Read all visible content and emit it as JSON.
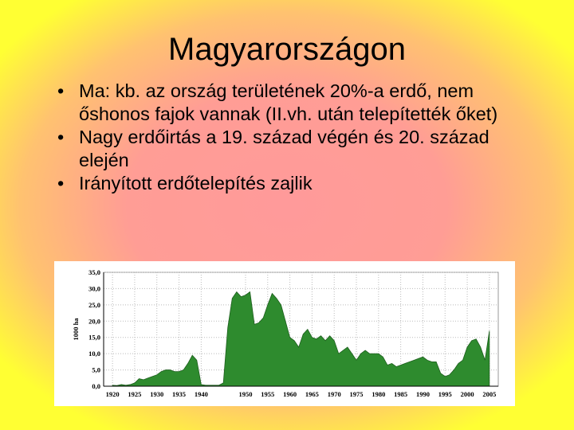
{
  "title": "Magyarországon",
  "bullets": [
    "Ma: kb. az ország területének 20%-a erdő, nem őshonos fajok vannak (II.vh. után telepítették őket)",
    "Nagy erdőirtás a 19. század végén és 20. század elején",
    "Irányított erdőtelepítés zajlik"
  ],
  "chart_data": {
    "type": "area",
    "ylabel": "1000 ha",
    "color": "#2e8b2e",
    "grid": true,
    "x": [
      1920,
      1921,
      1922,
      1923,
      1924,
      1925,
      1926,
      1927,
      1928,
      1929,
      1930,
      1931,
      1932,
      1933,
      1934,
      1935,
      1936,
      1937,
      1938,
      1939,
      1940,
      1941,
      1942,
      1943,
      1944,
      1945,
      1946,
      1947,
      1948,
      1949,
      1950,
      1951,
      1952,
      1953,
      1954,
      1955,
      1956,
      1957,
      1958,
      1959,
      1960,
      1961,
      1962,
      1963,
      1964,
      1965,
      1966,
      1967,
      1968,
      1969,
      1970,
      1971,
      1972,
      1973,
      1974,
      1975,
      1976,
      1977,
      1978,
      1979,
      1980,
      1981,
      1982,
      1983,
      1984,
      1985,
      1986,
      1987,
      1988,
      1989,
      1990,
      1991,
      1992,
      1993,
      1994,
      1995,
      1996,
      1997,
      1998,
      1999,
      2000,
      2001,
      2002,
      2003,
      2004,
      2005
    ],
    "values": [
      0.3,
      0.2,
      0.5,
      0.3,
      0.5,
      1,
      2.3,
      2,
      2.5,
      3,
      3.5,
      4.5,
      5,
      5,
      4.5,
      4.5,
      5,
      7,
      9.5,
      8,
      0.5,
      0.3,
      0.3,
      0.3,
      0.3,
      1,
      18,
      27,
      29,
      27.5,
      28,
      29,
      19,
      19.5,
      21,
      25,
      28.5,
      27,
      25,
      20,
      15,
      14,
      12,
      16,
      17.5,
      15,
      14.5,
      15.5,
      14,
      15.5,
      14,
      10,
      11,
      12,
      10,
      8,
      10,
      11,
      10,
      10,
      10,
      9,
      6.5,
      7,
      6,
      6.5,
      7,
      7.5,
      8,
      8.5,
      9,
      8,
      7.5,
      7.5,
      4,
      3,
      3.5,
      5,
      7,
      8,
      12,
      14,
      14.5,
      12,
      8,
      17
    ],
    "xlim": [
      1918,
      2007
    ],
    "xticks": [
      1920,
      1925,
      1930,
      1935,
      1940,
      1950,
      1955,
      1960,
      1965,
      1970,
      1975,
      1980,
      1985,
      1990,
      1995,
      2000,
      2005
    ],
    "ylim": [
      0,
      35
    ],
    "yticks": [
      {
        "value": 0,
        "label": "0,0"
      },
      {
        "value": 5,
        "label": "5,0"
      },
      {
        "value": 10,
        "label": "10,0"
      },
      {
        "value": 15,
        "label": "15,0"
      },
      {
        "value": 20,
        "label": "20,0"
      },
      {
        "value": 25,
        "label": "25,0"
      },
      {
        "value": 30,
        "label": "30,0"
      },
      {
        "value": 35,
        "label": "35,0"
      }
    ]
  }
}
